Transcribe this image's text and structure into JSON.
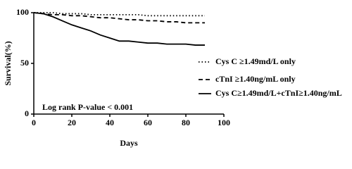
{
  "chart_data": {
    "type": "line",
    "xlabel": "Days",
    "ylabel": "Survival(%)",
    "annotation": "Log rank P-value < 0.001",
    "x": [
      0,
      5,
      10,
      15,
      20,
      25,
      30,
      35,
      40,
      45,
      50,
      55,
      60,
      65,
      70,
      75,
      80,
      85,
      90
    ],
    "series": [
      {
        "name": "Cys C ≥1.49md/L only",
        "color": "#000000",
        "line_style": "dotted",
        "values": [
          100,
          100,
          100,
          99,
          99,
          99,
          98,
          98,
          98,
          98,
          98,
          98,
          97,
          97,
          97,
          97,
          97,
          97,
          97
        ]
      },
      {
        "name": "cTnI ≥1.40ng/mL only",
        "color": "#000000",
        "line_style": "dashed",
        "values": [
          100,
          99,
          98,
          98,
          97,
          97,
          96,
          95,
          95,
          94,
          93,
          93,
          92,
          92,
          91,
          91,
          90,
          90,
          90
        ]
      },
      {
        "name": "Cys C≥1.49md/L+cTnI≥1.40ng/mL",
        "color": "#000000",
        "line_style": "solid",
        "values": [
          100,
          99,
          96,
          92,
          88,
          85,
          82,
          78,
          75,
          72,
          72,
          71,
          70,
          70,
          69,
          69,
          69,
          68,
          68
        ]
      }
    ],
    "xlim": [
      0,
      100
    ],
    "xticks": [
      0,
      20,
      40,
      60,
      80,
      100
    ],
    "ylim": [
      0,
      100
    ],
    "yticks": [
      0,
      50,
      100
    ],
    "legend": "right"
  }
}
